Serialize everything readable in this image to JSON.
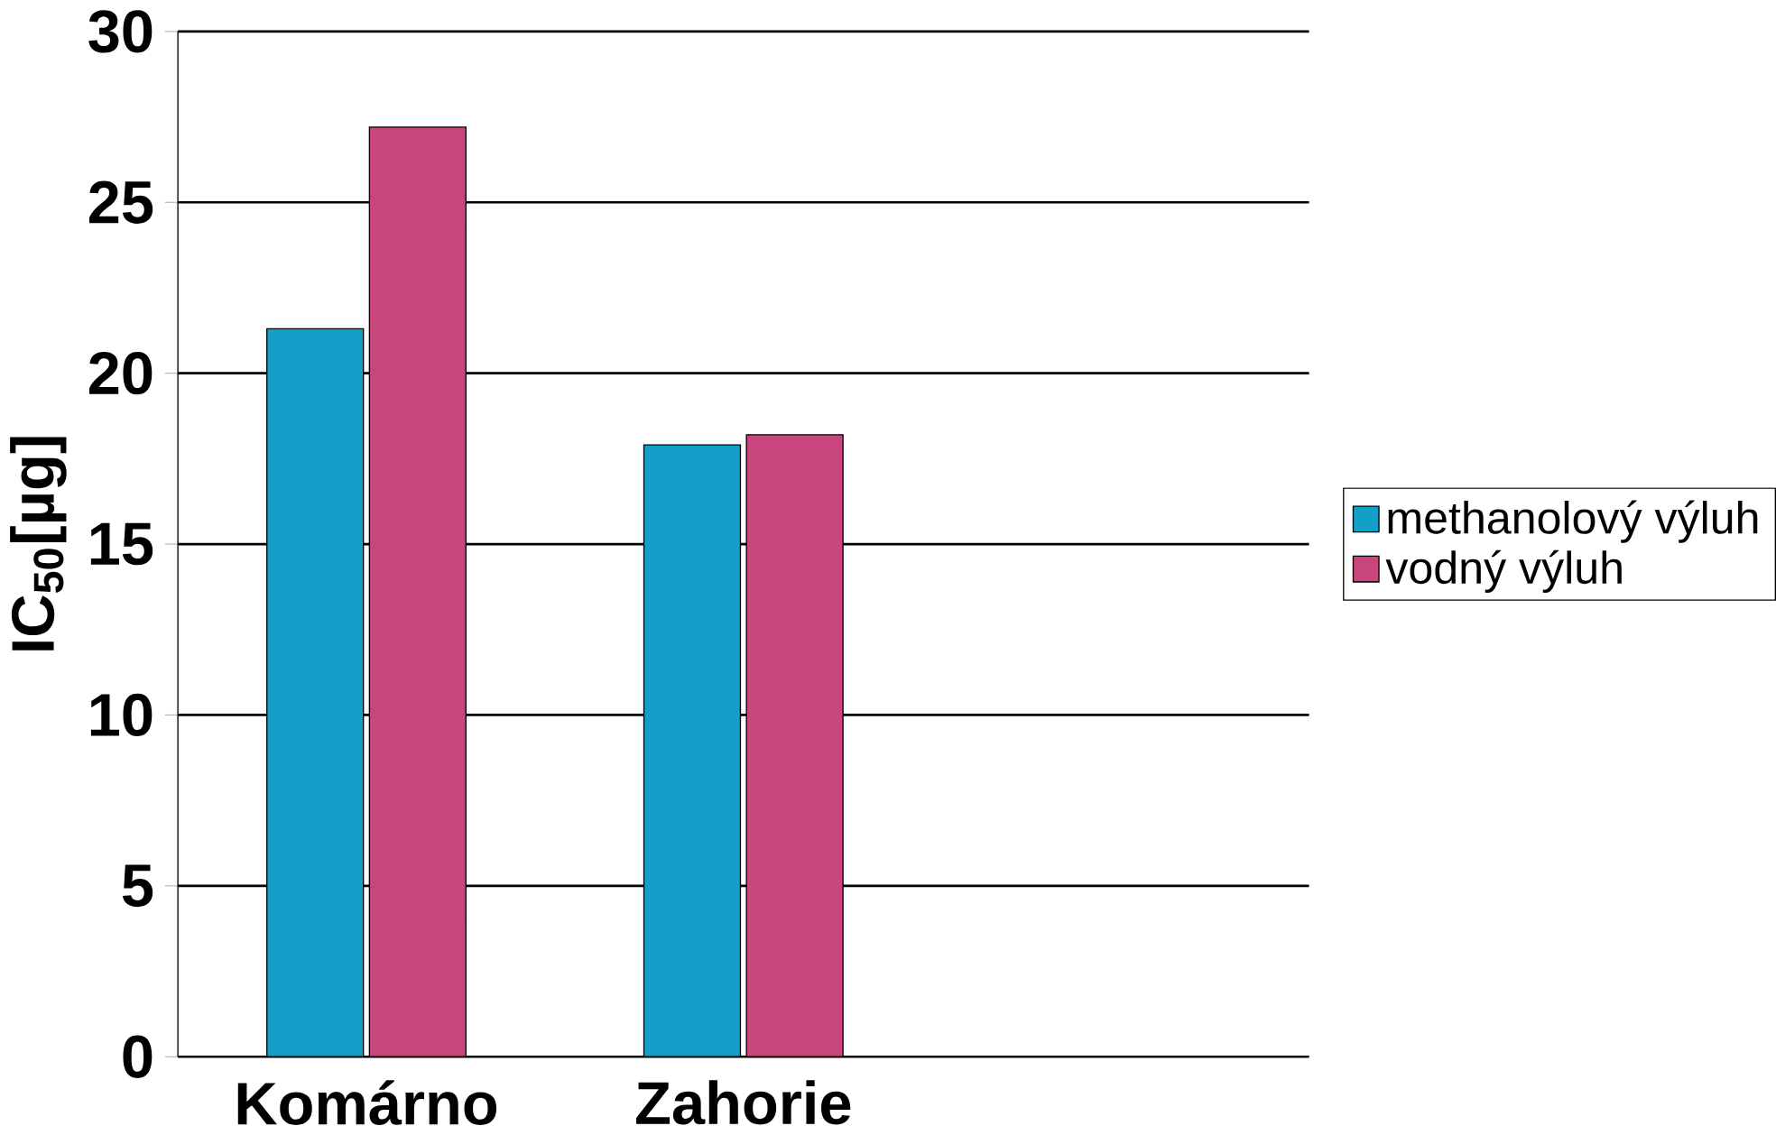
{
  "chart_data": {
    "type": "bar",
    "ylabel": "IC$_{50}$[µg]",
    "categories": [
      "Komárno",
      "Zahorie"
    ],
    "series": [
      {
        "name": "methanolový výluh",
        "color": "#149fc9",
        "values": [
          21.3,
          17.9
        ]
      },
      {
        "name": "vodný výluh",
        "color": "#c8467b",
        "values": [
          27.2,
          18.2
        ]
      }
    ],
    "ylim": [
      0,
      30
    ],
    "yticks": [
      0,
      5,
      10,
      15,
      20,
      25,
      30
    ],
    "grid": "y",
    "legend": "right"
  }
}
